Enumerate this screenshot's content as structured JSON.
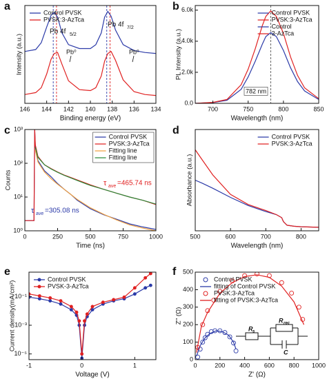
{
  "chart_data": [
    {
      "type": "line",
      "label": "a",
      "xlabel": "Binding energy (eV)",
      "ylabel": "Intensity (a.u.)",
      "xlim": [
        146,
        134
      ],
      "xticks": [
        146,
        144,
        142,
        140,
        138,
        136,
        134
      ],
      "ylim": [
        0,
        10
      ],
      "legend": "upper left",
      "x": [
        146,
        145,
        144.5,
        144,
        143.6,
        143.3,
        143,
        142.6,
        142,
        141,
        140,
        139.5,
        139,
        138.7,
        138.4,
        138.1,
        137.7,
        137,
        136,
        135,
        134
      ],
      "series": [
        {
          "name": "Control PVSK",
          "color": "#2b3aa8",
          "mode": "line",
          "values": [
            5.3,
            5.5,
            6.2,
            7.8,
            9.0,
            9.3,
            8.8,
            7.2,
            6.0,
            5.6,
            5.6,
            6.0,
            7.2,
            8.8,
            9.4,
            8.9,
            7.5,
            6.0,
            5.4,
            5.2,
            5.1
          ]
        },
        {
          "name": "PVSK:3-AzTca",
          "color": "#e02020",
          "mode": "line",
          "values": [
            0.9,
            1.1,
            1.6,
            3.0,
            4.5,
            5.1,
            5.2,
            4.0,
            2.3,
            1.4,
            1.3,
            1.6,
            2.8,
            4.3,
            5.1,
            5.3,
            4.4,
            2.4,
            1.2,
            0.9,
            0.8
          ]
        }
      ],
      "reference_lines": [
        {
          "x": 143.4,
          "color": "#2b3aa8"
        },
        {
          "x": 143.1,
          "color": "#e02020"
        },
        {
          "x": 138.5,
          "color": "#2b3aa8"
        },
        {
          "x": 138.2,
          "color": "#e02020"
        }
      ],
      "annotations": [
        "Pb 4f",
        "5/2",
        "Pb 4f",
        "7/2",
        "Pb⁰",
        "Pb⁰"
      ]
    },
    {
      "type": "line",
      "label": "b",
      "xlabel": "Wavelength (nm)",
      "ylabel": "PL Intensity (a.u.)",
      "xlim": [
        675,
        850
      ],
      "xticks": [
        700,
        750,
        800,
        850
      ],
      "ylim": [
        0,
        6300
      ],
      "yticks": [
        {
          "value": 0,
          "label": "0.0"
        },
        {
          "value": 2000,
          "label": "2.0k"
        },
        {
          "value": 4000,
          "label": "4.0k"
        },
        {
          "value": 6000,
          "label": "6.0k"
        }
      ],
      "legend": "upper right",
      "x": [
        675,
        700,
        720,
        740,
        750,
        760,
        770,
        775,
        782,
        790,
        800,
        810,
        820,
        830,
        850
      ],
      "series": [
        {
          "name": "Control PVSK",
          "color": "#2b3aa8",
          "mode": "line",
          "values": [
            0,
            50,
            200,
            900,
            1700,
            2700,
            3800,
            4300,
            4550,
            4300,
            3400,
            2300,
            1400,
            800,
            250
          ]
        },
        {
          "name": "PVSK:3-AzTca",
          "color": "#e02020",
          "mode": "line",
          "values": [
            0,
            60,
            250,
            1200,
            2200,
            3500,
            5000,
            5600,
            5950,
            5600,
            4500,
            3000,
            1800,
            1000,
            300
          ]
        }
      ],
      "legend_extra": [
        {
          "name": "Control",
          "color": "#2b3aa8"
        },
        {
          "name": "3-AzTca",
          "color": "#e02020"
        }
      ],
      "reference_lines": [
        {
          "x": 782,
          "color": "#555555"
        }
      ],
      "annotations": [
        "782 nm"
      ]
    },
    {
      "type": "line",
      "label": "c",
      "xlabel": "Time (ns)",
      "ylabel": "Counts",
      "xlim": [
        0,
        1000
      ],
      "xticks": [
        0,
        250,
        500,
        750,
        1000
      ],
      "ylim": [
        1,
        1000
      ],
      "ylog": true,
      "yticks": [
        {
          "value": 1,
          "label": "10⁰"
        },
        {
          "value": 10,
          "label": "10¹"
        },
        {
          "value": 100,
          "label": "10²"
        },
        {
          "value": 1000,
          "label": "10³"
        }
      ],
      "legend": "upper right",
      "legend_frame": true,
      "x": [
        0,
        70,
        75,
        80,
        100,
        150,
        200,
        250,
        300,
        350,
        400,
        500,
        600,
        700,
        800,
        900,
        1000
      ],
      "series": [
        {
          "name": "Control PVSK",
          "color": "#2b3aa8",
          "mode": "line",
          "values": [
            2,
            2,
            1000,
            300,
            120,
            60,
            40,
            25,
            17,
            12,
            8,
            4.5,
            3,
            2.2,
            1.6,
            1.3,
            1.1
          ]
        },
        {
          "name": "PVSK:3-AzTca",
          "color": "#e02020",
          "mode": "line",
          "values": [
            2,
            2,
            1000,
            350,
            160,
            90,
            70,
            55,
            45,
            38,
            32,
            23,
            17,
            13,
            10,
            8,
            6
          ]
        },
        {
          "name": "Fitting line",
          "color": "#f0a040",
          "mode": "line",
          "values": [
            null,
            null,
            null,
            250,
            110,
            55,
            35,
            24,
            17,
            12,
            8.5,
            4.8,
            3.1,
            2.1,
            1.5,
            1.2,
            1.0
          ]
        },
        {
          "name": "Fitting line",
          "color": "#2a8a3a",
          "mode": "line",
          "values": [
            null,
            null,
            null,
            300,
            150,
            90,
            68,
            54,
            44,
            37,
            31,
            22,
            17,
            13,
            10,
            8,
            6.2
          ]
        }
      ],
      "annotations": [
        "τ",
        "ave",
        "=465.74 ns",
        "τ",
        "ave",
        "=305.08 ns"
      ]
    },
    {
      "type": "line",
      "label": "d",
      "xlabel": "Wavelength (nm)",
      "ylabel": "Absorbance (a.u.)",
      "xlim": [
        500,
        850
      ],
      "xticks": [
        500,
        600,
        700,
        800
      ],
      "ylim": [
        0,
        10
      ],
      "legend": "upper right",
      "x": [
        500,
        520,
        550,
        600,
        650,
        700,
        730,
        745,
        750,
        760,
        780,
        800,
        850
      ],
      "series": [
        {
          "name": "Control PVSK",
          "color": "#2b3aa8",
          "mode": "line",
          "values": [
            5.0,
            4.7,
            4.2,
            3.3,
            2.5,
            1.9,
            1.6,
            1.3,
            0.9,
            0.55,
            0.45,
            0.4,
            0.35
          ]
        },
        {
          "name": "PVSK:3-AzTca",
          "color": "#e02020",
          "mode": "line",
          "values": [
            8.0,
            7.0,
            5.5,
            3.6,
            2.6,
            2.0,
            1.6,
            1.3,
            0.9,
            0.55,
            0.45,
            0.4,
            0.35
          ]
        }
      ]
    },
    {
      "type": "line",
      "label": "e",
      "xlabel": "Voltage (V)",
      "ylabel": "Current density(mA/cm²)",
      "xlim": [
        -1,
        1.4
      ],
      "xticks": [
        -1,
        0,
        1
      ],
      "ylim": [
        4e-06,
        5
      ],
      "ylog": true,
      "yticks": [
        {
          "value": 0.1,
          "label": "10⁻¹"
        },
        {
          "value": 0.001,
          "label": "10⁻³"
        },
        {
          "value": 1e-05,
          "label": "10⁻⁵"
        }
      ],
      "legend": "upper left",
      "x": [
        -1,
        -0.8,
        -0.6,
        -0.4,
        -0.2,
        -0.1,
        -0.05,
        0,
        0.05,
        0.1,
        0.2,
        0.4,
        0.6,
        0.8,
        1.0,
        1.2,
        1.3
      ],
      "series": [
        {
          "name": "Control PVSK",
          "color": "#2b3aa8",
          "mode": "line+markers",
          "values": [
            0.09,
            0.07,
            0.05,
            0.03,
            0.012,
            0.005,
            0.001,
            5e-06,
            0.001,
            0.004,
            0.012,
            0.03,
            0.05,
            0.07,
            0.15,
            0.4,
            0.6
          ]
        },
        {
          "name": "PVSK-3-AzTca",
          "color": "#e02020",
          "mode": "line+markers",
          "values": [
            0.15,
            0.11,
            0.08,
            0.05,
            0.02,
            0.008,
            0.002,
            1e-05,
            0.002,
            0.006,
            0.02,
            0.04,
            0.06,
            0.09,
            0.4,
            2,
            4
          ]
        }
      ]
    },
    {
      "type": "scatter",
      "label": "f",
      "xlabel": "Z' (Ω)",
      "ylabel": "Z'' (Ω)",
      "xlim": [
        0,
        1000
      ],
      "xticks": [
        0,
        200,
        400,
        600,
        800,
        1000
      ],
      "ylim": [
        0,
        500
      ],
      "yticks": [
        0,
        100,
        200,
        300,
        400,
        500
      ],
      "legend": "upper left",
      "series": [
        {
          "name": "Control PVSK",
          "color": "#2b3aa8",
          "mode": "markers",
          "x": [
            20,
            40,
            60,
            80,
            100,
            130,
            160,
            200,
            240,
            280,
            310,
            330
          ],
          "values": [
            15,
            60,
            100,
            125,
            145,
            160,
            165,
            165,
            155,
            130,
            95,
            50
          ]
        },
        {
          "name": "fitting of Control PVSK",
          "color": "#2b3aa8",
          "mode": "line",
          "x": [
            10,
            40,
            80,
            120,
            170,
            220,
            270,
            310,
            330
          ],
          "values": [
            20,
            80,
            125,
            150,
            165,
            160,
            140,
            100,
            60
          ]
        },
        {
          "name": "PVSK:3-AzTca",
          "color": "#e02020",
          "mode": "markers",
          "x": [
            20,
            60,
            100,
            150,
            200,
            300,
            400,
            500,
            600,
            700,
            780,
            840,
            870
          ],
          "values": [
            70,
            200,
            280,
            340,
            390,
            450,
            480,
            490,
            480,
            440,
            380,
            300,
            230
          ]
        },
        {
          "name": "fitting of PVSK:3-AzTca",
          "color": "#e02020",
          "mode": "line",
          "x": [
            10,
            50,
            100,
            200,
            300,
            400,
            500,
            600,
            700,
            800,
            880
          ],
          "values": [
            40,
            190,
            270,
            380,
            440,
            475,
            485,
            470,
            420,
            330,
            200
          ]
        }
      ],
      "circuit": [
        "R",
        "s",
        "R",
        "rec",
        "C"
      ]
    }
  ]
}
